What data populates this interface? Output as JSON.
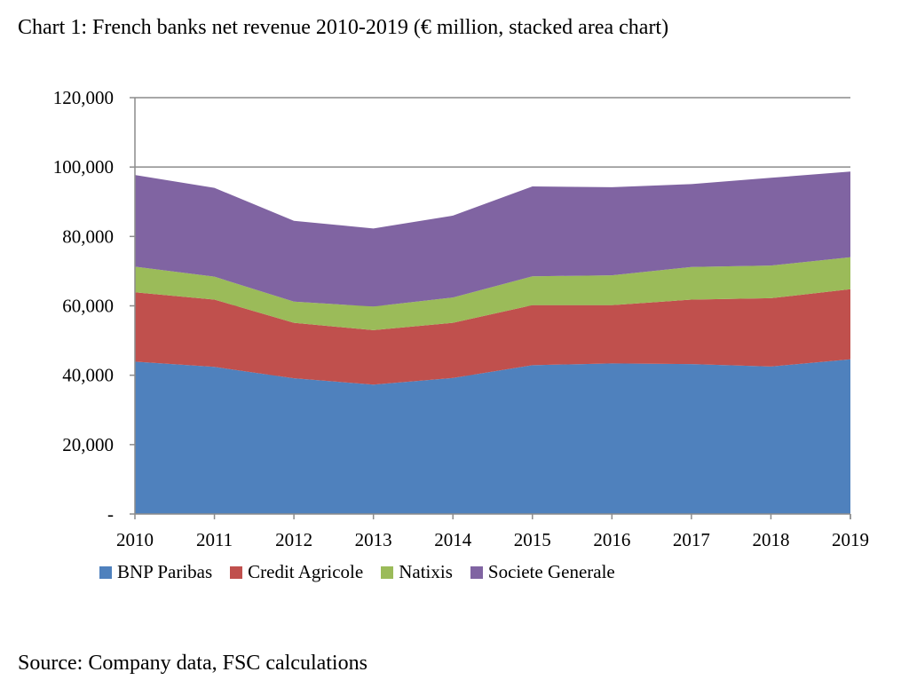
{
  "title": "Chart 1: French banks net revenue 2010-2019 (€ million, stacked area chart)",
  "source": "Source: Company data, FSC calculations",
  "chart_data": {
    "type": "area",
    "stacked": true,
    "x": [
      "2010",
      "2011",
      "2012",
      "2013",
      "2014",
      "2015",
      "2016",
      "2017",
      "2018",
      "2019"
    ],
    "ylim": [
      0,
      120000
    ],
    "yticks": [
      0,
      20000,
      40000,
      60000,
      80000,
      100000,
      120000
    ],
    "ytick_labels": [
      "-",
      "20,000",
      "40,000",
      "60,000",
      "80,000",
      "100,000",
      "120,000"
    ],
    "grid": true,
    "legend_position": "bottom",
    "series": [
      {
        "name": "BNP Paribas",
        "color": "#4F81BD",
        "values": [
          43900,
          42400,
          39100,
          37300,
          39200,
          42900,
          43400,
          43200,
          42500,
          44600
        ]
      },
      {
        "name": "Credit Agricole",
        "color": "#C0504D",
        "values": [
          20000,
          19400,
          16000,
          15700,
          15900,
          17300,
          16800,
          18600,
          19700,
          20200
        ]
      },
      {
        "name": "Natixis",
        "color": "#9BBB59",
        "values": [
          7400,
          6600,
          6100,
          6800,
          7300,
          8300,
          8600,
          9400,
          9400,
          9200
        ]
      },
      {
        "name": "Societe Generale",
        "color": "#8064A2",
        "values": [
          26400,
          25600,
          23300,
          22500,
          23600,
          25900,
          25400,
          23900,
          25300,
          24700
        ]
      }
    ]
  }
}
